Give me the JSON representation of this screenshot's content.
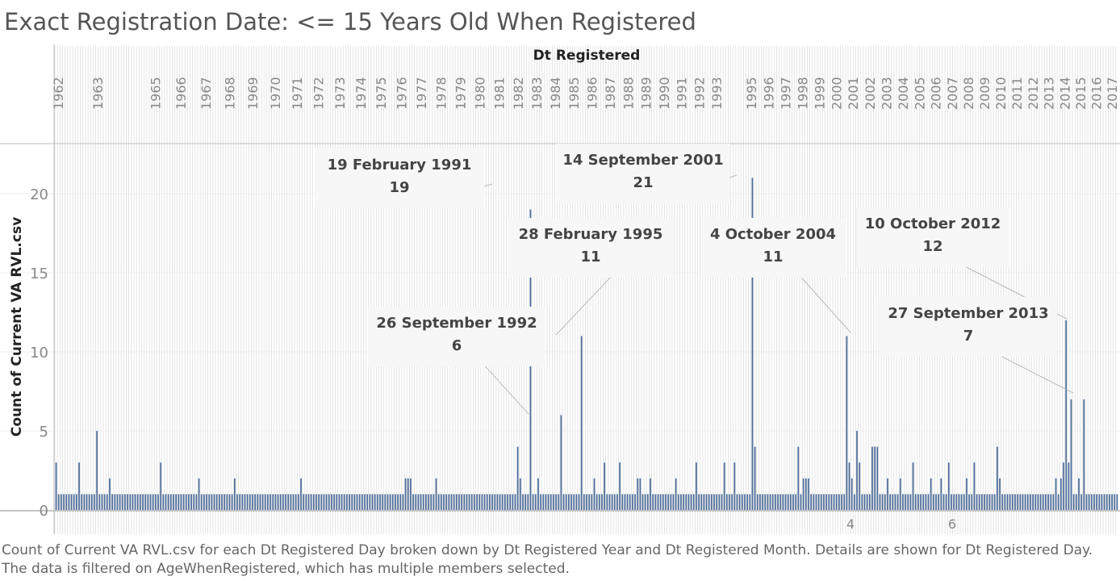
{
  "title": "Exact Registration Date:  <= 15 Years Old When Registered",
  "caption": "Count of Current VA RVL.csv for each Dt Registered Day broken down by Dt Registered Year and Dt Registered Month.  Details are shown for Dt Registered Day. The data is filtered on AgeWhenRegistered, which has multiple members selected.",
  "colors": {
    "bar": "#4e6e9b",
    "grid": "#d9d9d9",
    "axis_text": "#888888",
    "annotation_bg": "#f7f7f7"
  },
  "chart_data": {
    "type": "bar",
    "title": "Exact Registration Date:  <= 15 Years Old When Registered",
    "xlabel": "Dt Registered",
    "ylabel": "Count of Current VA RVL.csv",
    "ylim": [
      0,
      23
    ],
    "yticks": [
      0,
      5,
      10,
      15,
      20
    ],
    "gridlines": true,
    "year_labels": [
      "1962",
      "1963",
      "1965",
      "1966",
      "1967",
      "1968",
      "1969",
      "1970",
      "1971",
      "1972",
      "1973",
      "1974",
      "1975",
      "1976",
      "1977",
      "1978",
      "1979",
      "1980",
      "1981",
      "1982",
      "1983",
      "1984",
      "1985",
      "1986",
      "1987",
      "1988",
      "1989",
      "1990",
      "1991",
      "1992",
      "1993",
      "1995",
      "1996",
      "1997",
      "1998",
      "1999",
      "2000",
      "2001",
      "2002",
      "2003",
      "2004",
      "2005",
      "2006",
      "2007",
      "2008",
      "2009",
      "2010",
      "2011",
      "2012",
      "2013",
      "2014",
      "2015",
      "2016",
      "2017"
    ],
    "bottom_labels": [
      "4",
      "6"
    ],
    "series": [
      {
        "values": [
          3,
          1,
          1,
          1,
          1,
          1,
          1,
          1,
          1,
          3,
          1,
          1,
          1,
          1,
          1,
          1,
          5,
          1,
          1,
          1,
          1,
          2,
          1,
          1,
          1,
          1,
          1,
          1,
          1,
          1,
          1,
          1,
          1,
          1,
          1,
          1,
          1,
          1,
          1,
          1,
          1,
          3,
          1,
          1,
          1,
          1,
          1,
          1,
          1,
          1,
          1,
          1,
          1,
          1,
          1,
          1,
          2,
          1,
          1,
          1,
          1,
          1,
          1,
          1,
          1,
          1,
          1,
          1,
          1,
          1,
          2,
          1,
          1,
          1,
          1,
          1,
          1,
          1,
          1,
          1,
          1,
          1,
          1,
          1,
          1,
          1,
          1,
          1,
          1,
          1,
          1,
          1,
          1,
          1,
          1,
          1,
          2,
          1,
          1,
          1,
          1,
          1,
          1,
          1,
          1,
          1,
          1,
          1,
          1,
          1,
          1,
          1,
          1,
          1,
          1,
          1,
          1,
          1,
          1,
          1,
          1,
          1,
          1,
          1,
          1,
          1,
          1,
          1,
          1,
          1,
          1,
          1,
          1,
          1,
          1,
          1,
          1,
          2,
          2,
          2,
          1,
          1,
          1,
          1,
          1,
          1,
          1,
          1,
          1,
          2,
          1,
          1,
          1,
          1,
          1,
          1,
          1,
          1,
          1,
          1,
          1,
          1,
          1,
          1,
          1,
          1,
          1,
          1,
          1,
          1,
          1,
          1,
          1,
          1,
          1,
          1,
          1,
          1,
          1,
          1,
          1,
          4,
          2,
          1,
          1,
          1,
          19,
          1,
          1,
          2,
          1,
          1,
          1,
          1,
          1,
          1,
          1,
          1,
          6,
          1,
          1,
          1,
          1,
          1,
          1,
          1,
          11,
          1,
          1,
          1,
          1,
          2,
          1,
          1,
          1,
          3,
          1,
          1,
          1,
          1,
          1,
          3,
          1,
          1,
          1,
          1,
          1,
          1,
          2,
          2,
          1,
          1,
          1,
          2,
          1,
          1,
          1,
          1,
          1,
          1,
          1,
          1,
          1,
          2,
          1,
          1,
          1,
          1,
          1,
          1,
          1,
          3,
          1,
          1,
          1,
          1,
          1,
          1,
          1,
          1,
          1,
          1,
          3,
          1,
          1,
          1,
          3,
          1,
          1,
          1,
          1,
          1,
          1,
          21,
          4,
          1,
          1,
          1,
          1,
          1,
          1,
          1,
          1,
          1,
          1,
          1,
          1,
          1,
          1,
          1,
          1,
          4,
          1,
          2,
          2,
          2,
          1,
          1,
          1,
          1,
          1,
          1,
          1,
          1,
          1,
          1,
          1,
          1,
          1,
          1,
          11,
          3,
          2,
          1,
          5,
          3,
          1,
          1,
          1,
          1,
          4,
          4,
          4,
          1,
          1,
          1,
          2,
          1,
          1,
          1,
          1,
          2,
          1,
          1,
          1,
          1,
          3,
          1,
          1,
          1,
          1,
          1,
          1,
          2,
          1,
          1,
          1,
          2,
          1,
          1,
          3,
          1,
          1,
          1,
          1,
          1,
          1,
          2,
          1,
          1,
          3,
          1,
          1,
          1,
          1,
          1,
          1,
          1,
          1,
          4,
          2,
          1,
          1,
          1,
          1,
          1,
          1,
          1,
          1,
          1,
          1,
          1,
          1,
          1,
          1,
          1,
          1,
          1,
          1,
          1,
          1,
          1,
          2,
          1,
          2,
          3,
          12,
          3,
          7,
          1,
          1,
          2,
          1,
          7,
          1,
          1,
          1,
          1,
          1,
          1,
          1,
          1,
          1,
          1,
          1,
          1,
          1
        ]
      }
    ],
    "annotations": [
      {
        "date": "19 February 1991",
        "value": 19
      },
      {
        "date": "14 September 2001",
        "value": 21
      },
      {
        "date": "28 February 1995",
        "value": 11
      },
      {
        "date": "4 October 2004",
        "value": 11
      },
      {
        "date": "10 October 2012",
        "value": 12
      },
      {
        "date": "26 September 1992",
        "value": 6
      },
      {
        "date": "27 September 2013",
        "value": 7
      }
    ]
  }
}
